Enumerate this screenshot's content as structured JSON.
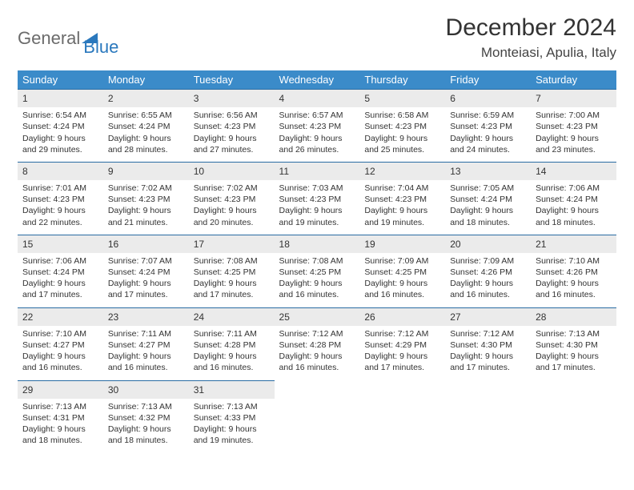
{
  "logo": {
    "word1": "General",
    "word2": "Blue",
    "icon_color": "#2a78bd",
    "text1_color": "#6b6b6b",
    "text2_color": "#2a78bd"
  },
  "title": "December 2024",
  "location": "Monteiasi, Apulia, Italy",
  "header_bg": "#3b8bc9",
  "header_fg": "#ffffff",
  "daynum_bg": "#ebebeb",
  "daynum_border": "#2a6ca3",
  "columns": [
    "Sunday",
    "Monday",
    "Tuesday",
    "Wednesday",
    "Thursday",
    "Friday",
    "Saturday"
  ],
  "weeks": [
    [
      {
        "n": "1",
        "sr": "Sunrise: 6:54 AM",
        "ss": "Sunset: 4:24 PM",
        "d1": "Daylight: 9 hours",
        "d2": "and 29 minutes."
      },
      {
        "n": "2",
        "sr": "Sunrise: 6:55 AM",
        "ss": "Sunset: 4:24 PM",
        "d1": "Daylight: 9 hours",
        "d2": "and 28 minutes."
      },
      {
        "n": "3",
        "sr": "Sunrise: 6:56 AM",
        "ss": "Sunset: 4:23 PM",
        "d1": "Daylight: 9 hours",
        "d2": "and 27 minutes."
      },
      {
        "n": "4",
        "sr": "Sunrise: 6:57 AM",
        "ss": "Sunset: 4:23 PM",
        "d1": "Daylight: 9 hours",
        "d2": "and 26 minutes."
      },
      {
        "n": "5",
        "sr": "Sunrise: 6:58 AM",
        "ss": "Sunset: 4:23 PM",
        "d1": "Daylight: 9 hours",
        "d2": "and 25 minutes."
      },
      {
        "n": "6",
        "sr": "Sunrise: 6:59 AM",
        "ss": "Sunset: 4:23 PM",
        "d1": "Daylight: 9 hours",
        "d2": "and 24 minutes."
      },
      {
        "n": "7",
        "sr": "Sunrise: 7:00 AM",
        "ss": "Sunset: 4:23 PM",
        "d1": "Daylight: 9 hours",
        "d2": "and 23 minutes."
      }
    ],
    [
      {
        "n": "8",
        "sr": "Sunrise: 7:01 AM",
        "ss": "Sunset: 4:23 PM",
        "d1": "Daylight: 9 hours",
        "d2": "and 22 minutes."
      },
      {
        "n": "9",
        "sr": "Sunrise: 7:02 AM",
        "ss": "Sunset: 4:23 PM",
        "d1": "Daylight: 9 hours",
        "d2": "and 21 minutes."
      },
      {
        "n": "10",
        "sr": "Sunrise: 7:02 AM",
        "ss": "Sunset: 4:23 PM",
        "d1": "Daylight: 9 hours",
        "d2": "and 20 minutes."
      },
      {
        "n": "11",
        "sr": "Sunrise: 7:03 AM",
        "ss": "Sunset: 4:23 PM",
        "d1": "Daylight: 9 hours",
        "d2": "and 19 minutes."
      },
      {
        "n": "12",
        "sr": "Sunrise: 7:04 AM",
        "ss": "Sunset: 4:23 PM",
        "d1": "Daylight: 9 hours",
        "d2": "and 19 minutes."
      },
      {
        "n": "13",
        "sr": "Sunrise: 7:05 AM",
        "ss": "Sunset: 4:24 PM",
        "d1": "Daylight: 9 hours",
        "d2": "and 18 minutes."
      },
      {
        "n": "14",
        "sr": "Sunrise: 7:06 AM",
        "ss": "Sunset: 4:24 PM",
        "d1": "Daylight: 9 hours",
        "d2": "and 18 minutes."
      }
    ],
    [
      {
        "n": "15",
        "sr": "Sunrise: 7:06 AM",
        "ss": "Sunset: 4:24 PM",
        "d1": "Daylight: 9 hours",
        "d2": "and 17 minutes."
      },
      {
        "n": "16",
        "sr": "Sunrise: 7:07 AM",
        "ss": "Sunset: 4:24 PM",
        "d1": "Daylight: 9 hours",
        "d2": "and 17 minutes."
      },
      {
        "n": "17",
        "sr": "Sunrise: 7:08 AM",
        "ss": "Sunset: 4:25 PM",
        "d1": "Daylight: 9 hours",
        "d2": "and 17 minutes."
      },
      {
        "n": "18",
        "sr": "Sunrise: 7:08 AM",
        "ss": "Sunset: 4:25 PM",
        "d1": "Daylight: 9 hours",
        "d2": "and 16 minutes."
      },
      {
        "n": "19",
        "sr": "Sunrise: 7:09 AM",
        "ss": "Sunset: 4:25 PM",
        "d1": "Daylight: 9 hours",
        "d2": "and 16 minutes."
      },
      {
        "n": "20",
        "sr": "Sunrise: 7:09 AM",
        "ss": "Sunset: 4:26 PM",
        "d1": "Daylight: 9 hours",
        "d2": "and 16 minutes."
      },
      {
        "n": "21",
        "sr": "Sunrise: 7:10 AM",
        "ss": "Sunset: 4:26 PM",
        "d1": "Daylight: 9 hours",
        "d2": "and 16 minutes."
      }
    ],
    [
      {
        "n": "22",
        "sr": "Sunrise: 7:10 AM",
        "ss": "Sunset: 4:27 PM",
        "d1": "Daylight: 9 hours",
        "d2": "and 16 minutes."
      },
      {
        "n": "23",
        "sr": "Sunrise: 7:11 AM",
        "ss": "Sunset: 4:27 PM",
        "d1": "Daylight: 9 hours",
        "d2": "and 16 minutes."
      },
      {
        "n": "24",
        "sr": "Sunrise: 7:11 AM",
        "ss": "Sunset: 4:28 PM",
        "d1": "Daylight: 9 hours",
        "d2": "and 16 minutes."
      },
      {
        "n": "25",
        "sr": "Sunrise: 7:12 AM",
        "ss": "Sunset: 4:28 PM",
        "d1": "Daylight: 9 hours",
        "d2": "and 16 minutes."
      },
      {
        "n": "26",
        "sr": "Sunrise: 7:12 AM",
        "ss": "Sunset: 4:29 PM",
        "d1": "Daylight: 9 hours",
        "d2": "and 17 minutes."
      },
      {
        "n": "27",
        "sr": "Sunrise: 7:12 AM",
        "ss": "Sunset: 4:30 PM",
        "d1": "Daylight: 9 hours",
        "d2": "and 17 minutes."
      },
      {
        "n": "28",
        "sr": "Sunrise: 7:13 AM",
        "ss": "Sunset: 4:30 PM",
        "d1": "Daylight: 9 hours",
        "d2": "and 17 minutes."
      }
    ],
    [
      {
        "n": "29",
        "sr": "Sunrise: 7:13 AM",
        "ss": "Sunset: 4:31 PM",
        "d1": "Daylight: 9 hours",
        "d2": "and 18 minutes."
      },
      {
        "n": "30",
        "sr": "Sunrise: 7:13 AM",
        "ss": "Sunset: 4:32 PM",
        "d1": "Daylight: 9 hours",
        "d2": "and 18 minutes."
      },
      {
        "n": "31",
        "sr": "Sunrise: 7:13 AM",
        "ss": "Sunset: 4:33 PM",
        "d1": "Daylight: 9 hours",
        "d2": "and 19 minutes."
      },
      null,
      null,
      null,
      null
    ]
  ]
}
